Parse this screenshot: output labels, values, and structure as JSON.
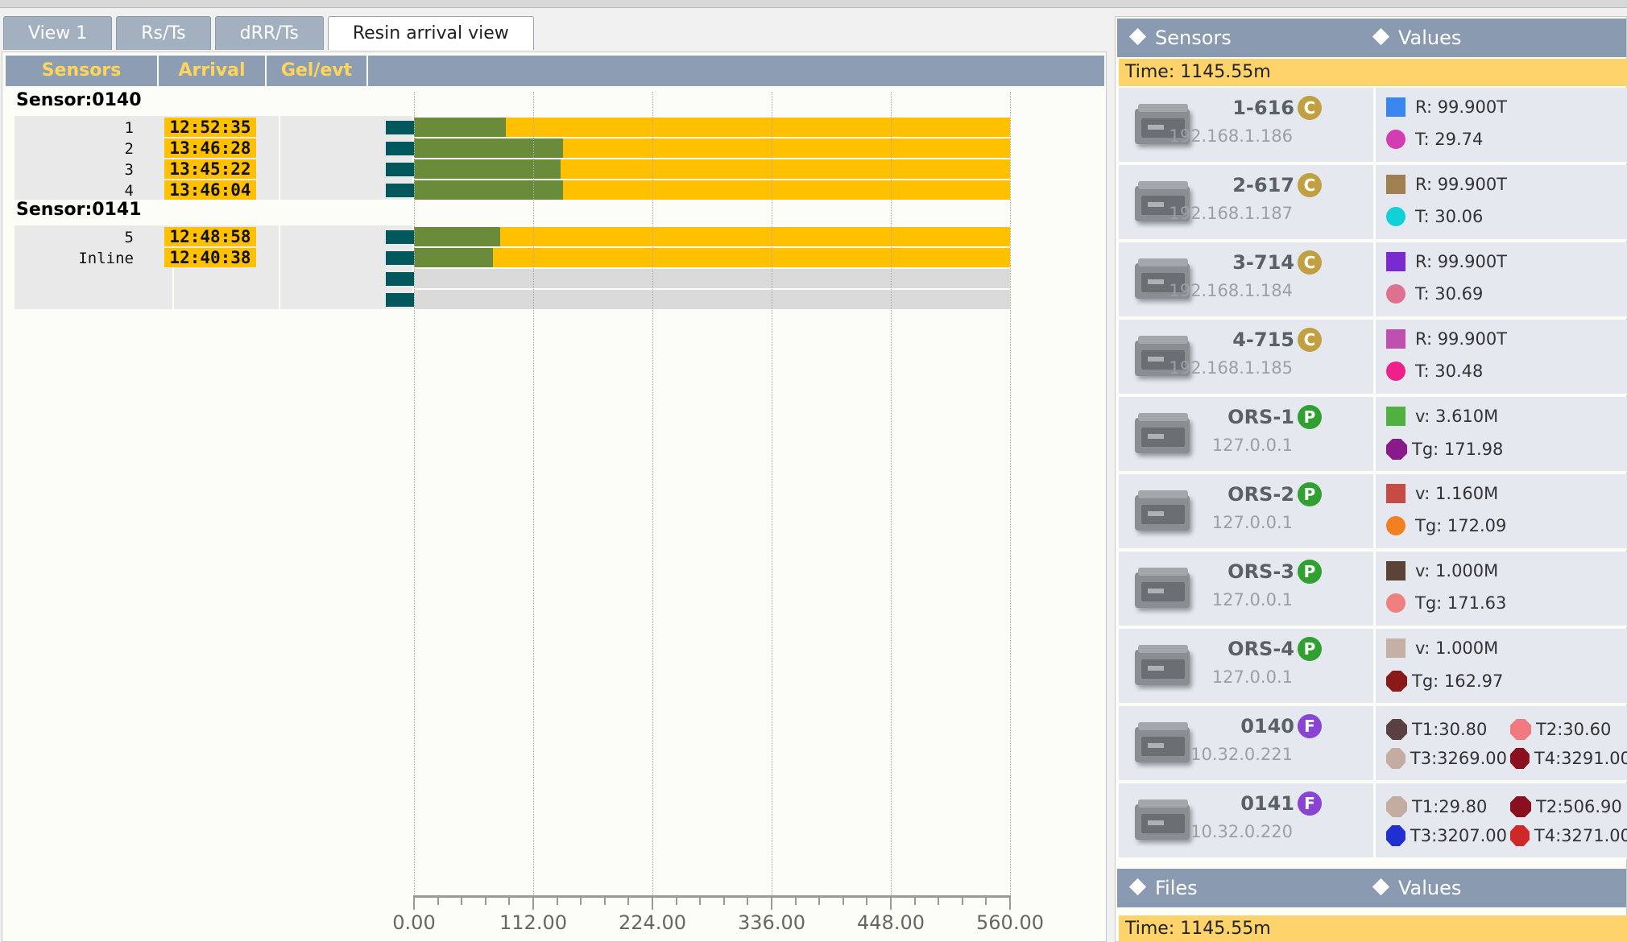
{
  "tabs": [
    {
      "label": "View 1",
      "active": false
    },
    {
      "label": "Rs/Ts",
      "active": false
    },
    {
      "label": "dRR/Ts",
      "active": false
    },
    {
      "label": "Resin arrival view",
      "active": true
    }
  ],
  "grid": {
    "headers": {
      "sensors": "Sensors",
      "arrival": "Arrival",
      "gel": "Gel/evt"
    },
    "groups": [
      {
        "title": "Sensor:0140",
        "rows": [
          {
            "name": "1",
            "arrival": "12:52:35",
            "green": 86
          },
          {
            "name": "2",
            "arrival": "13:46:28",
            "green": 140
          },
          {
            "name": "3",
            "arrival": "13:45:22",
            "green": 138
          },
          {
            "name": "4",
            "arrival": "13:46:04",
            "green": 140
          }
        ]
      },
      {
        "title": "Sensor:0141",
        "rows": [
          {
            "name": "5",
            "arrival": "12:48:58",
            "green": 81
          },
          {
            "name": "Inline",
            "arrival": "12:40:38",
            "green": 74
          },
          {
            "name": "",
            "arrival": "",
            "green": null
          },
          {
            "name": "",
            "arrival": "",
            "green": null
          }
        ]
      }
    ],
    "colors": {
      "arrival": "#ffc000",
      "bar_fill": "#ffc000",
      "bar_progress": "#6a8c3a",
      "indicator": "#00585c"
    }
  },
  "chart_data": {
    "type": "bar",
    "orientation": "horizontal",
    "xlim": [
      0,
      560
    ],
    "ticks": [
      "0.00",
      "112.00",
      "224.00",
      "336.00",
      "448.00",
      "560.00"
    ],
    "categories": [
      "1",
      "2",
      "3",
      "4",
      "5",
      "Inline"
    ],
    "values": [
      86,
      140,
      138,
      140,
      81,
      74
    ],
    "grid": true
  },
  "sensors_panel": {
    "header_left": "Sensors",
    "header_right": "Values",
    "time": "Time: 1145.55m",
    "devices": [
      {
        "name": "1-616",
        "badge": "C",
        "badge_color": "#c0a040",
        "ip": "192.168.1.186",
        "values": [
          {
            "shape": "sq",
            "color": "#3a86f0",
            "text": "R: 99.900T"
          },
          {
            "shape": "dot",
            "color": "#d43cb4",
            "text": "T: 29.74"
          }
        ]
      },
      {
        "name": "2-617",
        "badge": "C",
        "badge_color": "#c0a040",
        "ip": "192.168.1.187",
        "values": [
          {
            "shape": "sq",
            "color": "#a08050",
            "text": "R: 99.900T"
          },
          {
            "shape": "dot",
            "color": "#10d0d8",
            "text": "T: 30.06"
          }
        ]
      },
      {
        "name": "3-714",
        "badge": "C",
        "badge_color": "#c0a040",
        "ip": "192.168.1.184",
        "values": [
          {
            "shape": "sq",
            "color": "#7a2ad0",
            "text": "R: 99.900T"
          },
          {
            "shape": "dot",
            "color": "#e07090",
            "text": "T: 30.69"
          }
        ]
      },
      {
        "name": "4-715",
        "badge": "C",
        "badge_color": "#c0a040",
        "ip": "192.168.1.185",
        "values": [
          {
            "shape": "sq",
            "color": "#c050b0",
            "text": "R: 99.900T"
          },
          {
            "shape": "dot",
            "color": "#f0208a",
            "text": "T: 30.48"
          }
        ]
      },
      {
        "name": "ORS-1",
        "badge": "P",
        "badge_color": "#30a030",
        "ip": "127.0.0.1",
        "values": [
          {
            "shape": "sq",
            "color": "#50b040",
            "text": "v: 3.610M"
          },
          {
            "shape": "oct",
            "color": "#8a1a8a",
            "text": "Tg: 171.98"
          }
        ]
      },
      {
        "name": "ORS-2",
        "badge": "P",
        "badge_color": "#30a030",
        "ip": "127.0.0.1",
        "values": [
          {
            "shape": "sq",
            "color": "#c84a44",
            "text": "v: 1.160M"
          },
          {
            "shape": "dot",
            "color": "#f08020",
            "text": "Tg: 172.09"
          }
        ]
      },
      {
        "name": "ORS-3",
        "badge": "P",
        "badge_color": "#30a030",
        "ip": "127.0.0.1",
        "values": [
          {
            "shape": "sq",
            "color": "#5a4438",
            "text": "v: 1.000M"
          },
          {
            "shape": "dot",
            "color": "#f08080",
            "text": "Tg: 171.63"
          }
        ]
      },
      {
        "name": "ORS-4",
        "badge": "P",
        "badge_color": "#30a030",
        "ip": "127.0.0.1",
        "values": [
          {
            "shape": "sq",
            "color": "#c4b0a4",
            "text": "v: 1.000M"
          },
          {
            "shape": "oct",
            "color": "#8a1a1a",
            "text": "Tg: 162.97"
          }
        ]
      },
      {
        "name": "0140",
        "badge": "F",
        "badge_color": "#8a44d4",
        "ip": "10.32.0.221",
        "values": [
          {
            "shape": "oct",
            "color": "#5a4040",
            "text": "T1:30.80"
          },
          {
            "shape": "oct",
            "color": "#f07a80",
            "text": "T2:30.60"
          },
          {
            "shape": "oct",
            "color": "#c4aca0",
            "text": "T3:3269.00"
          },
          {
            "shape": "oct",
            "color": "#8a1020",
            "text": "T4:3291.00"
          }
        ]
      },
      {
        "name": "0141",
        "badge": "F",
        "badge_color": "#8a44d4",
        "ip": "10.32.0.220",
        "values": [
          {
            "shape": "oct",
            "color": "#c4aca0",
            "text": "T1:29.80"
          },
          {
            "shape": "oct",
            "color": "#8a1020",
            "text": "T2:506.90"
          },
          {
            "shape": "oct",
            "color": "#2030d0",
            "text": "T3:3207.00"
          },
          {
            "shape": "oct",
            "color": "#d02828",
            "text": "T4:3271.00"
          }
        ]
      }
    ]
  },
  "files_panel": {
    "header_left": "Files",
    "header_right": "Values",
    "time": "Time: 1145.55m"
  }
}
